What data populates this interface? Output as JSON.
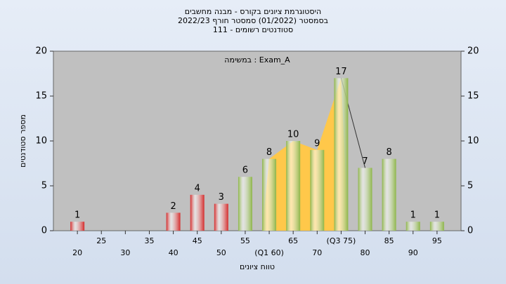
{
  "chart_data": {
    "type": "bar",
    "title": "היסטוגרמת ציונים בקורס - מבנה מחשבים",
    "subtitle": [
      "בסמסטר  (01/2022)  סמסטר חורף 2022/23",
      "סטודנטים רשומים - 111"
    ],
    "annotation": "במשימה : Exam_A",
    "x_label": "טווח ציונים",
    "y_label": "מספר סטודנטים",
    "categories": [
      "20",
      "25",
      "30",
      "35",
      "40",
      "45",
      "50",
      "55",
      "(Q1 60)",
      "65",
      "70",
      "(Q3 75)",
      "80",
      "85",
      "90",
      "95"
    ],
    "values": [
      1,
      0,
      0,
      0,
      2,
      4,
      3,
      6,
      8,
      10,
      9,
      17,
      7,
      8,
      1,
      1
    ],
    "colors": [
      "#d42a2a",
      "#d42a2a",
      "#d42a2a",
      "#d42a2a",
      "#d42a2a",
      "#d42a2a",
      "#d42a2a",
      "#8db548",
      "#8db548",
      "#8db548",
      "#8db548",
      "#8db548",
      "#8db548",
      "#8db548",
      "#8db548",
      "#8db548"
    ],
    "area_color": "#ffc84a",
    "ylim": [
      0,
      20
    ],
    "yticks": [
      0,
      5,
      10,
      15,
      20
    ]
  }
}
